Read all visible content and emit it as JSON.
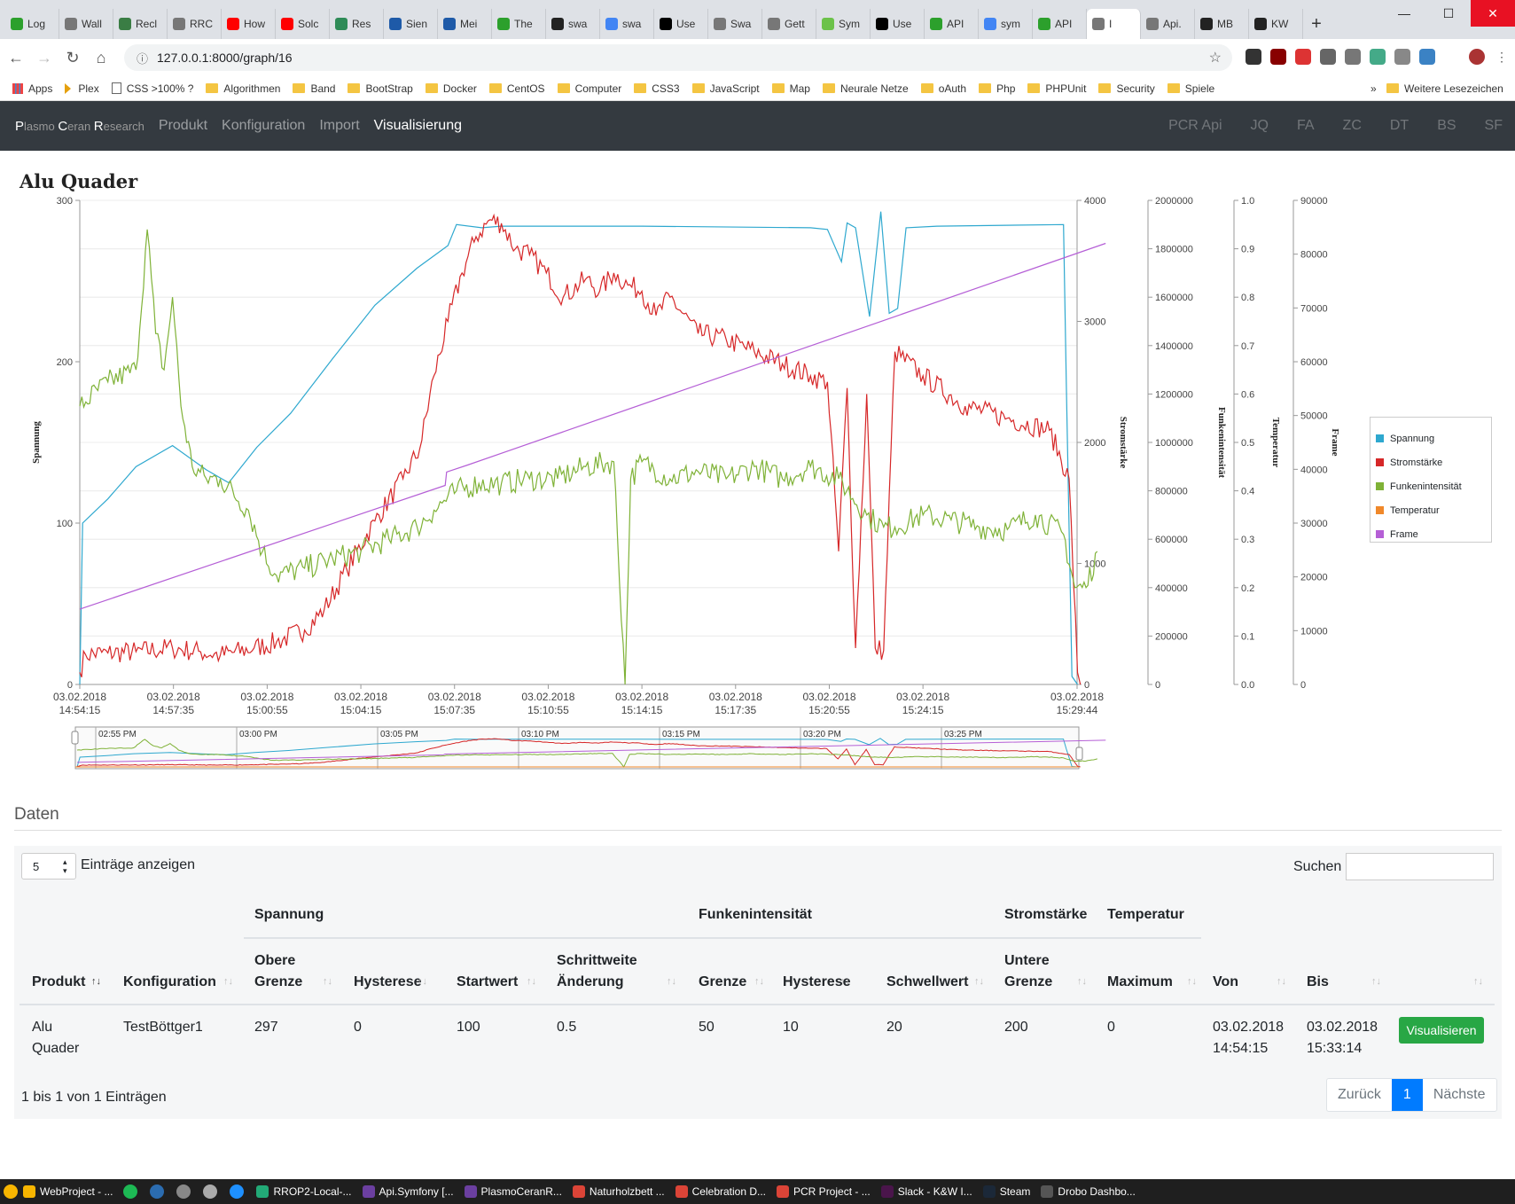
{
  "browser": {
    "tabs": [
      {
        "label": "Log",
        "color": "#2ca02c"
      },
      {
        "label": "Wall",
        "color": "#777777"
      },
      {
        "label": "Recl",
        "color": "#3a7d44"
      },
      {
        "label": "RRC",
        "color": "#777777"
      },
      {
        "label": "How",
        "color": "#ff0000"
      },
      {
        "label": "Solc",
        "color": "#ff0000"
      },
      {
        "label": "Res",
        "color": "#2e8b57"
      },
      {
        "label": "Sien",
        "color": "#1e5aa8"
      },
      {
        "label": "Mei",
        "color": "#1e5aa8"
      },
      {
        "label": "The",
        "color": "#2ca02c"
      },
      {
        "label": "swa",
        "color": "#222222"
      },
      {
        "label": "swa",
        "color": "#4285f4"
      },
      {
        "label": "Use",
        "color": "#000000"
      },
      {
        "label": "Swa",
        "color": "#777777"
      },
      {
        "label": "Gett",
        "color": "#777777"
      },
      {
        "label": "Sym",
        "color": "#6cc24a"
      },
      {
        "label": "Use",
        "color": "#000000"
      },
      {
        "label": "API",
        "color": "#2ca02c"
      },
      {
        "label": "sym",
        "color": "#4285f4"
      },
      {
        "label": "API",
        "color": "#2ca02c"
      },
      {
        "label": "I",
        "color": "#777777",
        "active": true
      },
      {
        "label": "Api.",
        "color": "#777777"
      },
      {
        "label": "MB",
        "color": "#222222"
      },
      {
        "label": "KW",
        "color": "#222222"
      }
    ],
    "url": "127.0.0.1:8000/graph/16",
    "bookmarks": [
      {
        "label": "Apps",
        "kind": "apps"
      },
      {
        "label": "Plex",
        "kind": "plex"
      },
      {
        "label": "CSS >100% ?",
        "kind": "file"
      },
      {
        "label": "Algorithmen",
        "kind": "folder"
      },
      {
        "label": "Band",
        "kind": "folder"
      },
      {
        "label": "BootStrap",
        "kind": "folder"
      },
      {
        "label": "Docker",
        "kind": "folder"
      },
      {
        "label": "CentOS",
        "kind": "folder"
      },
      {
        "label": "Computer",
        "kind": "folder"
      },
      {
        "label": "CSS3",
        "kind": "folder"
      },
      {
        "label": "JavaScript",
        "kind": "folder"
      },
      {
        "label": "Map",
        "kind": "folder"
      },
      {
        "label": "Neurale Netze",
        "kind": "folder"
      },
      {
        "label": "oAuth",
        "kind": "folder"
      },
      {
        "label": "Php",
        "kind": "folder"
      },
      {
        "label": "PHPUnit",
        "kind": "folder"
      },
      {
        "label": "Security",
        "kind": "folder"
      },
      {
        "label": "Spiele",
        "kind": "folder"
      }
    ],
    "bookmarks_overflow": "»",
    "other_bookmarks": "Weitere Lesezeichen"
  },
  "navbar": {
    "brand": {
      "p1": "P",
      "p1rest": "lasmo ",
      "p2": "C",
      "p2rest": "eran ",
      "p3": "R",
      "p3rest": "esearch"
    },
    "links": [
      "Produkt",
      "Konfiguration",
      "Import",
      "Visualisierung"
    ],
    "right_links": [
      "PCR Api",
      "JQ",
      "FA",
      "ZC",
      "DT",
      "BS",
      "SF"
    ]
  },
  "page": {
    "title": "Alu Quader"
  },
  "chart_data": {
    "type": "line",
    "title": "Alu Quader",
    "x_labels": [
      [
        "03.02.2018",
        "14:54:15"
      ],
      [
        "03.02.2018",
        "14:57:35"
      ],
      [
        "03.02.2018",
        "15:00:55"
      ],
      [
        "03.02.2018",
        "15:04:15"
      ],
      [
        "03.02.2018",
        "15:07:35"
      ],
      [
        "03.02.2018",
        "15:10:55"
      ],
      [
        "03.02.2018",
        "15:14:15"
      ],
      [
        "03.02.2018",
        "15:17:35"
      ],
      [
        "03.02.2018",
        "15:20:55"
      ],
      [
        "03.02.2018",
        "15:24:15"
      ],
      [
        "03.02.2018",
        "15:29:44"
      ]
    ],
    "x_minutes": [
      0,
      3.333,
      6.667,
      10,
      13.333,
      16.667,
      20,
      23.333,
      26.667,
      30,
      35.483
    ],
    "axes": [
      {
        "name": "Spannung",
        "ticks": [
          "0",
          "100",
          "200",
          "300"
        ],
        "range": [
          0,
          300
        ]
      },
      {
        "name": "Stromstärke",
        "ticks": [
          "0",
          "1000",
          "2000",
          "3000",
          "4000"
        ],
        "range": [
          0,
          4000
        ]
      },
      {
        "name": "Funkenintensität",
        "ticks": [
          "0",
          "200000",
          "400000",
          "600000",
          "800000",
          "1000000",
          "1200000",
          "1400000",
          "1600000",
          "1800000",
          "2000000"
        ],
        "range": [
          0,
          2000000
        ]
      },
      {
        "name": "Temperatur",
        "ticks": [
          "0.0",
          "0.1",
          "0.2",
          "0.3",
          "0.4",
          "0.5",
          "0.6",
          "0.7",
          "0.8",
          "0.9",
          "1.0"
        ],
        "range": [
          0,
          1
        ]
      },
      {
        "name": "Frame",
        "ticks": [
          "0",
          "10000",
          "20000",
          "30000",
          "40000",
          "50000",
          "60000",
          "70000",
          "80000",
          "90000"
        ],
        "range": [
          0,
          90000
        ]
      }
    ],
    "series": [
      {
        "name": "Spannung",
        "color": "#2ea8cf",
        "axis": 0,
        "points": [
          [
            0,
            0
          ],
          [
            0.1,
            100
          ],
          [
            1,
            115
          ],
          [
            2,
            135
          ],
          [
            3.3,
            148
          ],
          [
            4.5,
            133
          ],
          [
            5.3,
            125
          ],
          [
            6.3,
            147
          ],
          [
            7.5,
            168
          ],
          [
            9,
            202
          ],
          [
            10.5,
            235
          ],
          [
            12,
            258
          ],
          [
            13.1,
            272
          ],
          [
            13.4,
            285
          ],
          [
            14.3,
            283
          ],
          [
            15,
            284
          ],
          [
            20,
            284
          ],
          [
            26,
            283
          ],
          [
            26.6,
            282
          ],
          [
            27.1,
            262
          ],
          [
            27.3,
            286
          ],
          [
            27.6,
            283
          ],
          [
            28.1,
            228
          ],
          [
            28.5,
            293
          ],
          [
            28.8,
            230
          ],
          [
            29.1,
            233
          ],
          [
            29.4,
            283
          ],
          [
            30.5,
            284
          ],
          [
            35,
            285
          ],
          [
            35.1,
            185
          ],
          [
            35.3,
            5
          ],
          [
            35.5,
            0
          ]
        ]
      },
      {
        "name": "Stromstärke",
        "color": "#d62728",
        "axis": 1,
        "points": [
          [
            0,
            100
          ],
          [
            0.2,
            250
          ],
          [
            1,
            260
          ],
          [
            2,
            270
          ],
          [
            3.3,
            300
          ],
          [
            4.3,
            270
          ],
          [
            5,
            240
          ],
          [
            6.2,
            300
          ],
          [
            7,
            350
          ],
          [
            8,
            450
          ],
          [
            8.7,
            620
          ],
          [
            9.5,
            950
          ],
          [
            10.5,
            1350
          ],
          [
            11.5,
            1700
          ],
          [
            12.1,
            1950
          ],
          [
            12.6,
            2550
          ],
          [
            13.1,
            3000
          ],
          [
            13.6,
            3400
          ],
          [
            14.1,
            3700
          ],
          [
            14.6,
            3840
          ],
          [
            15,
            3810
          ],
          [
            15.5,
            3600
          ],
          [
            16,
            3550
          ],
          [
            16.6,
            3400
          ],
          [
            17.2,
            3200
          ],
          [
            18,
            3350
          ],
          [
            18.5,
            3250
          ],
          [
            19,
            3400
          ],
          [
            19.5,
            3300
          ],
          [
            20,
            3250
          ],
          [
            20.5,
            3050
          ],
          [
            21,
            3200
          ],
          [
            22,
            2900
          ],
          [
            23,
            2850
          ],
          [
            24,
            2750
          ],
          [
            25,
            2650
          ],
          [
            26,
            2550
          ],
          [
            26.6,
            2500
          ],
          [
            27,
            1100
          ],
          [
            27.3,
            2450
          ],
          [
            27.6,
            300
          ],
          [
            28,
            2400
          ],
          [
            28.3,
            300
          ],
          [
            28.6,
            280
          ],
          [
            29,
            2750
          ],
          [
            30,
            2550
          ],
          [
            31.5,
            2300
          ],
          [
            33,
            2200
          ],
          [
            34.5,
            2100
          ],
          [
            35.2,
            1700
          ],
          [
            35.5,
            100
          ],
          [
            35.6,
            0
          ]
        ]
      },
      {
        "name": "Funkenintensität",
        "color": "#7fb237",
        "axis": 2,
        "points": [
          [
            0,
            1150000
          ],
          [
            1,
            1250000
          ],
          [
            2,
            1300000
          ],
          [
            2.4,
            1880000
          ],
          [
            2.7,
            1450000
          ],
          [
            3,
            1300000
          ],
          [
            3.3,
            1600000
          ],
          [
            3.6,
            1150000
          ],
          [
            4,
            900000
          ],
          [
            4.5,
            850000
          ],
          [
            5,
            850000
          ],
          [
            6,
            720000
          ],
          [
            6.5,
            550000
          ],
          [
            7,
            450000
          ],
          [
            8,
            480000
          ],
          [
            9,
            520000
          ],
          [
            10,
            550000
          ],
          [
            11,
            600000
          ],
          [
            12,
            650000
          ],
          [
            12.6,
            720000
          ],
          [
            13.4,
            800000
          ],
          [
            14.2,
            830000
          ],
          [
            15,
            830000
          ],
          [
            16,
            850000
          ],
          [
            17,
            850000
          ],
          [
            18,
            900000
          ],
          [
            19,
            920000
          ],
          [
            19.4,
            0
          ],
          [
            19.6,
            850000
          ],
          [
            20,
            920000
          ],
          [
            21,
            850000
          ],
          [
            22,
            880000
          ],
          [
            23,
            850000
          ],
          [
            24,
            900000
          ],
          [
            25,
            850000
          ],
          [
            26,
            900000
          ],
          [
            27,
            850000
          ],
          [
            28,
            700000
          ],
          [
            28.6,
            650000
          ],
          [
            29,
            650000
          ],
          [
            30,
            700000
          ],
          [
            31,
            680000
          ],
          [
            32,
            650000
          ],
          [
            33,
            640000
          ],
          [
            34,
            700000
          ],
          [
            35,
            620000
          ],
          [
            35.4,
            400000
          ],
          [
            35.8,
            400000
          ],
          [
            36.2,
            550000
          ]
        ]
      },
      {
        "name": "Temperatur",
        "color": "#f0882a",
        "axis": 3,
        "points": []
      },
      {
        "name": "Frame",
        "color": "#b55fd6",
        "axis": 4,
        "points": [
          [
            0,
            14000
          ],
          [
            13,
            37000
          ],
          [
            13.05,
            39500
          ],
          [
            13.8,
            40800
          ],
          [
            36.5,
            82000
          ]
        ]
      }
    ]
  },
  "navigator": {
    "time_labels": [
      "02:55 PM",
      "03:00 PM",
      "03:05 PM",
      "03:10 PM",
      "03:15 PM",
      "03:20 PM",
      "03:25 PM"
    ]
  },
  "legend": {
    "items": [
      {
        "name": "Spannung",
        "color": "#2ea8cf"
      },
      {
        "name": "Stromstärke",
        "color": "#d62728"
      },
      {
        "name": "Funkenintensität",
        "color": "#7fb237"
      },
      {
        "name": "Temperatur",
        "color": "#f0882a"
      },
      {
        "name": "Frame",
        "color": "#b55fd6"
      }
    ]
  },
  "data_section": {
    "title": "Daten",
    "length_value": "5",
    "length_label": "Einträge anzeigen",
    "search_label": "Suchen",
    "group_headers": [
      "Spannung",
      "Funkenintensität",
      "Stromstärke",
      "Temperatur"
    ],
    "columns": [
      {
        "line1": "Produkt",
        "line2": ""
      },
      {
        "line1": "Konfiguration",
        "line2": ""
      },
      {
        "line1": "Obere",
        "line2": "Grenze"
      },
      {
        "line1": "Hysterese",
        "line2": ""
      },
      {
        "line1": "Startwert",
        "line2": ""
      },
      {
        "line1": "Schrittweite",
        "line2": "Änderung"
      },
      {
        "line1": "Grenze",
        "line2": ""
      },
      {
        "line1": "Hysterese",
        "line2": ""
      },
      {
        "line1": "Schwellwert",
        "line2": ""
      },
      {
        "line1": "Untere",
        "line2": "Grenze"
      },
      {
        "line1": "Maximum",
        "line2": ""
      },
      {
        "line1": "Von",
        "line2": ""
      },
      {
        "line1": "Bis",
        "line2": ""
      }
    ],
    "row": {
      "produkt": [
        "Alu",
        "Quader"
      ],
      "konfiguration": "TestBöttger1",
      "obere_grenze": "297",
      "hysterese": "0",
      "startwert": "100",
      "schrittweite": "0.5",
      "grenze": "50",
      "f_hysterese": "10",
      "schwellwert": "20",
      "untere_grenze": "200",
      "maximum": "0",
      "von": [
        "03.02.2018",
        "14:54:15"
      ],
      "bis": [
        "03.02.2018",
        "15:33:14"
      ],
      "action": "Visualisieren"
    },
    "info": "1 bis 1 von 1 Einträgen",
    "pager": {
      "prev": "Zurück",
      "current": "1",
      "next": "Nächste"
    }
  },
  "taskbar": {
    "items": [
      {
        "label": "WebProject - ...",
        "color": "#f7b500"
      },
      {
        "label": "RROP2-Local-...",
        "color": "#2a7"
      },
      {
        "label": "Api.Symfony [...",
        "color": "#6b3fa0"
      },
      {
        "label": "PlasmoCeranR...",
        "color": "#6b3fa0"
      },
      {
        "label": "Naturholzbett ...",
        "color": "#db4437"
      },
      {
        "label": "Celebration D...",
        "color": "#db4437"
      },
      {
        "label": "PCR Project - ...",
        "color": "#db4437"
      },
      {
        "label": "Slack - K&W I...",
        "color": "#4a154b"
      },
      {
        "label": "Steam",
        "color": "#1b2838"
      },
      {
        "label": "Drobo Dashbo...",
        "color": "#555"
      }
    ]
  }
}
